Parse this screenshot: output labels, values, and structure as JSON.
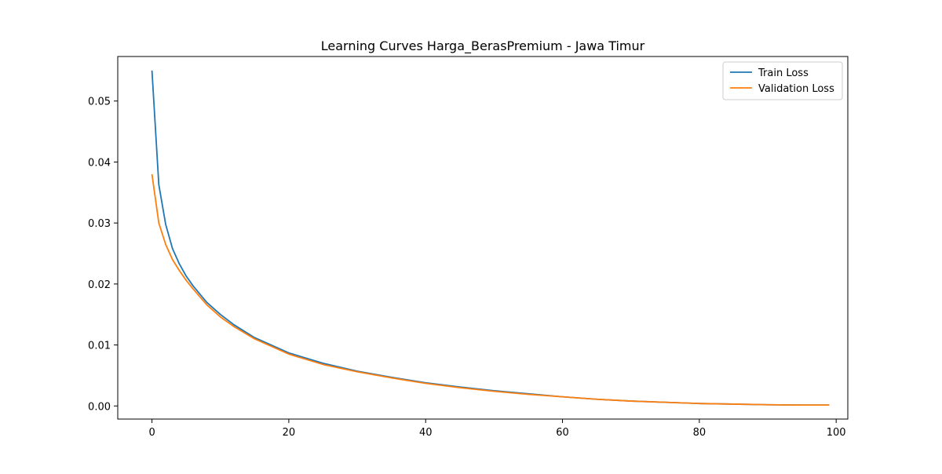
{
  "chart_data": {
    "type": "line",
    "title": "Learning Curves Harga_BerasPremium - Jawa Timur",
    "xlabel": "",
    "ylabel": "",
    "xlim": [
      -5,
      101.7
    ],
    "ylim": [
      -0.00215,
      0.0573
    ],
    "xticks": [
      0,
      20,
      40,
      60,
      80,
      100
    ],
    "yticks": [
      0.0,
      0.01,
      0.02,
      0.03,
      0.04,
      0.05
    ],
    "xtick_labels": [
      "0",
      "20",
      "40",
      "60",
      "80",
      "100"
    ],
    "ytick_labels": [
      "0.00",
      "0.01",
      "0.02",
      "0.03",
      "0.04",
      "0.05"
    ],
    "grid": false,
    "legend_position": "top-right",
    "series": [
      {
        "name": "Train Loss",
        "color": "#1f77b4",
        "x": [
          0,
          1,
          2,
          3,
          4,
          5,
          6,
          8,
          10,
          12,
          15,
          20,
          25,
          30,
          35,
          40,
          45,
          50,
          55,
          60,
          65,
          70,
          75,
          80,
          85,
          90,
          95,
          99
        ],
        "y": [
          0.055,
          0.0363,
          0.0298,
          0.0258,
          0.0233,
          0.0213,
          0.0197,
          0.017,
          0.015,
          0.0133,
          0.0112,
          0.0087,
          0.007,
          0.0057,
          0.0047,
          0.0038,
          0.0031,
          0.0025,
          0.002,
          0.0015,
          0.0011,
          0.0008,
          0.0006,
          0.0004,
          0.0003,
          0.0002,
          0.00015,
          0.00015
        ]
      },
      {
        "name": "Validation Loss",
        "color": "#ff7f0e",
        "x": [
          0,
          1,
          2,
          3,
          4,
          5,
          6,
          8,
          10,
          12,
          15,
          20,
          25,
          30,
          35,
          40,
          45,
          50,
          55,
          60,
          65,
          70,
          75,
          80,
          85,
          90,
          95,
          99
        ],
        "y": [
          0.038,
          0.03,
          0.0265,
          0.024,
          0.0222,
          0.0206,
          0.0192,
          0.0166,
          0.0146,
          0.013,
          0.011,
          0.0085,
          0.0068,
          0.0056,
          0.0046,
          0.0037,
          0.003,
          0.0024,
          0.0019,
          0.0015,
          0.0011,
          0.0008,
          0.0006,
          0.0004,
          0.0003,
          0.0002,
          0.00015,
          0.00015
        ]
      }
    ]
  }
}
